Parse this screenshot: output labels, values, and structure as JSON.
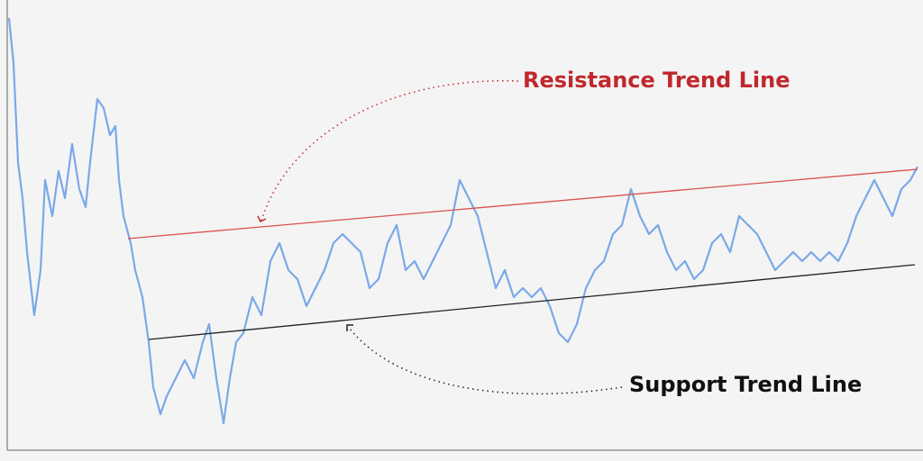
{
  "chart_data": {
    "type": "line",
    "x": [
      1.0,
      1.5,
      2.0,
      2.5,
      3.0,
      3.8,
      4.5,
      5.0,
      5.8,
      6.5,
      7.2,
      8.0,
      8.8,
      9.5,
      10.0,
      10.8,
      11.5,
      12.2,
      12.8,
      13.2,
      13.7,
      14.5,
      15.0,
      15.8,
      16.5,
      17.0,
      17.8,
      18.5,
      19.5,
      20.5,
      21.5,
      22.5,
      23.2,
      24.0,
      24.8,
      25.5,
      26.2,
      27.0,
      28.0,
      29.0,
      30.0,
      31.0,
      32.0,
      33.0,
      34.0,
      35.0,
      36.0,
      37.0,
      38.0,
      39.0,
      40.0,
      41.0,
      42.0,
      43.0,
      44.0,
      45.0,
      46.0,
      47.0,
      48.0,
      49.0,
      50.0,
      51.0,
      52.0,
      53.0,
      54.0,
      55.0,
      56.0,
      57.0,
      58.0,
      59.0,
      60.0,
      61.0,
      62.0,
      63.0,
      64.0,
      65.0,
      66.0,
      67.0,
      68.0,
      69.0,
      70.0,
      71.0,
      72.0,
      73.0,
      74.0,
      75.0,
      76.0,
      77.0,
      78.0,
      79.0,
      80.0,
      81.0,
      82.0,
      83.0,
      84.0,
      85.0,
      86.0,
      87.0,
      88.0,
      89.0,
      90.0,
      91.0,
      92.0,
      93.0,
      94.0,
      95.0,
      96.0,
      97.0,
      98.0,
      99.0,
      100.0,
      101.0,
      101.8
    ],
    "series": [
      {
        "color": "#7aa9e8",
        "values": [
          96,
          86,
          64,
          56,
          44,
          30,
          40,
          60,
          52,
          62,
          56,
          68,
          58,
          54,
          64,
          78,
          76,
          70,
          72,
          60,
          52,
          46,
          40,
          34,
          24,
          14,
          8,
          12,
          16,
          20,
          16,
          24,
          28,
          16,
          6,
          16,
          24,
          26,
          34,
          30,
          42,
          46,
          40,
          38,
          32,
          36,
          40,
          46,
          48,
          46,
          44,
          36,
          38,
          46,
          50,
          40,
          42,
          38,
          42,
          46,
          50,
          60,
          56,
          52,
          44,
          36,
          40,
          34,
          36,
          34,
          36,
          32,
          26,
          24,
          28,
          36,
          40,
          42,
          48,
          50,
          58,
          52,
          48,
          50,
          44,
          40,
          42,
          38,
          40,
          46,
          48,
          44,
          52,
          50,
          48,
          44,
          40,
          42,
          44,
          42,
          44,
          42,
          44,
          42,
          46,
          52,
          56,
          60,
          56,
          52,
          58,
          60,
          63
        ]
      }
    ],
    "trend_lines": [
      {
        "x": [
          14.2,
          101.8
        ],
        "values": [
          47,
          62.4
        ],
        "color": "#d9534f"
      },
      {
        "x": [
          16.5,
          101.5
        ],
        "values": [
          24.6,
          41.2
        ],
        "color": "#222222"
      }
    ],
    "xlim": [
      0.8,
      102
    ],
    "ylim": [
      0,
      100
    ],
    "annotations": [
      {
        "text": "Resistance Trend Line",
        "color": "#c0282d"
      },
      {
        "text": "Support Trend Line",
        "color": "#111111"
      }
    ]
  }
}
